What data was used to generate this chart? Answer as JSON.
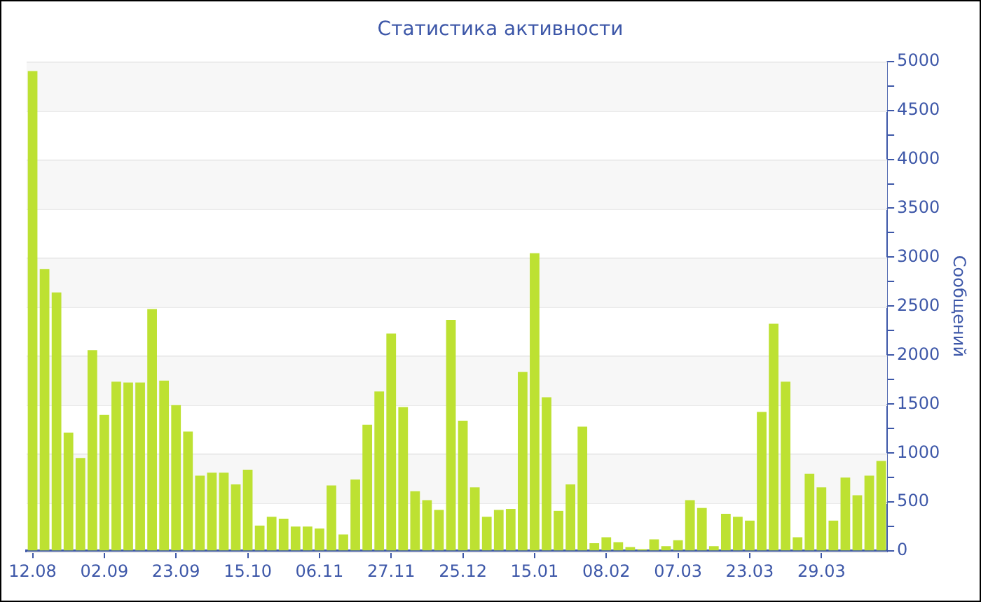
{
  "chart_data": {
    "type": "bar",
    "title": "Статистика активности",
    "ylabel": "Сообщений",
    "categories": [
      "12.08",
      null,
      null,
      null,
      null,
      null,
      "02.09",
      null,
      null,
      null,
      null,
      null,
      "23.09",
      null,
      null,
      null,
      null,
      null,
      "15.10",
      null,
      null,
      null,
      null,
      null,
      "06.11",
      null,
      null,
      null,
      null,
      null,
      "27.11",
      null,
      null,
      null,
      null,
      null,
      "25.12",
      null,
      null,
      null,
      null,
      null,
      "15.01",
      null,
      null,
      null,
      null,
      null,
      "08.02",
      null,
      null,
      null,
      null,
      null,
      "07.03",
      null,
      null,
      null,
      null,
      null,
      "23.03",
      null,
      null,
      null,
      null,
      null,
      "29.03",
      null,
      null,
      null,
      null,
      null
    ],
    "values": [
      4900,
      2880,
      2640,
      1210,
      950,
      2050,
      1390,
      1730,
      1720,
      1720,
      2470,
      1740,
      1490,
      1220,
      770,
      800,
      800,
      680,
      830,
      260,
      350,
      330,
      250,
      250,
      230,
      670,
      170,
      730,
      1290,
      1630,
      2220,
      1470,
      610,
      520,
      420,
      2360,
      1330,
      650,
      350,
      420,
      430,
      1830,
      3040,
      1570,
      410,
      680,
      1270,
      80,
      140,
      90,
      40,
      20,
      120,
      50,
      110,
      520,
      440,
      50,
      380,
      350,
      310,
      1420,
      2320,
      1730,
      140,
      790,
      650,
      310,
      750,
      570,
      770,
      920
    ],
    "color": "#bde132",
    "ylim": [
      0,
      5000
    ],
    "yticks": [
      0,
      {
        "value": 250,
        "label": null
      },
      500,
      {
        "value": 750,
        "label": null
      },
      1000,
      {
        "value": 1250,
        "label": null
      },
      1500,
      {
        "value": 1750,
        "label": null
      },
      2000,
      {
        "value": 2250,
        "label": null
      },
      2500,
      {
        "value": 2750,
        "label": null
      },
      3000,
      {
        "value": 3250,
        "label": null
      },
      3500,
      {
        "value": 3750,
        "label": null
      },
      4000,
      {
        "value": 4250,
        "label": null
      },
      4500,
      {
        "value": 4750,
        "label": null
      },
      5000
    ],
    "grid": "y",
    "legend": false
  }
}
